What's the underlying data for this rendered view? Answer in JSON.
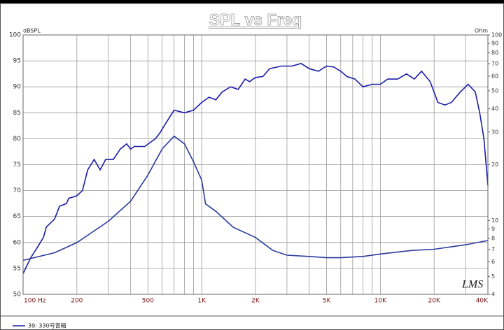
{
  "chart_data": {
    "type": "line",
    "title": "SPL vs Freq",
    "ylabel": "dBSPL",
    "y2label": "Ohm",
    "watermark": "LMS",
    "xscale": "log",
    "y2scale": "log",
    "grid": true,
    "xlim": [
      100,
      40000
    ],
    "xticks": [
      {
        "value": 100,
        "label": "100  Hz"
      },
      200,
      500,
      {
        "value": 1000,
        "label": "1K"
      },
      {
        "value": 2000,
        "label": "2K"
      },
      {
        "value": 5000,
        "label": "5K"
      },
      {
        "value": 10000,
        "label": "10K"
      },
      {
        "value": 20000,
        "label": "20K"
      },
      {
        "value": 40000,
        "label": "40K"
      }
    ],
    "xgrid": [
      300,
      400,
      600,
      700,
      800,
      900,
      3000,
      4000,
      6000,
      7000,
      8000,
      9000,
      30000
    ],
    "ylim": [
      50,
      100
    ],
    "yticks": [
      50,
      55,
      60,
      65,
      70,
      75,
      80,
      85,
      90,
      95,
      100
    ],
    "y2lim": [
      4,
      100
    ],
    "y2ticks": [
      4,
      5,
      6,
      7,
      8,
      9,
      10,
      20,
      30,
      40,
      50,
      60,
      70,
      80,
      90,
      100
    ],
    "series": [
      {
        "name": "39: 330号音箱",
        "color": "#1c1caa",
        "x": [
          100,
          110,
          120,
          130,
          135,
          150,
          160,
          175,
          180,
          200,
          215,
          230,
          250,
          270,
          290,
          320,
          350,
          380,
          400,
          420,
          480,
          550,
          580,
          630,
          700,
          800,
          900,
          1000,
          1100,
          1200,
          1300,
          1450,
          1600,
          1750,
          1850,
          2000,
          2200,
          2400,
          2800,
          3200,
          3600,
          4000,
          4500,
          5000,
          5500,
          6000,
          6500,
          7200,
          8000,
          9000,
          10000,
          11000,
          12500,
          14000,
          15500,
          17000,
          19000,
          21000,
          23000,
          25000,
          28000,
          31000,
          34000,
          36000,
          38000,
          40000
        ],
        "values": [
          54,
          57,
          59,
          61,
          63,
          64.5,
          67,
          67.5,
          68.5,
          69,
          70,
          74,
          76,
          74,
          76,
          76,
          78,
          79,
          78,
          78.5,
          78.5,
          80,
          81,
          83,
          85.5,
          85,
          85.5,
          87,
          88,
          87.5,
          89,
          90,
          89.5,
          91.5,
          91,
          91.8,
          92,
          93.5,
          94,
          94,
          94.5,
          93.5,
          93,
          94,
          93.8,
          93,
          92,
          91.5,
          90,
          90.5,
          90.5,
          91.5,
          91.5,
          92.5,
          91.5,
          93,
          91,
          87,
          86.5,
          87,
          89,
          90.5,
          89,
          85,
          80,
          71
        ]
      },
      {
        "color": "#2a3a9c",
        "axis": "y2",
        "x": [
          100,
          150,
          200,
          300,
          400,
          500,
          600,
          700,
          800,
          900,
          1000,
          1050,
          1200,
          1500,
          2000,
          2500,
          3000,
          4000,
          5000,
          6000,
          8000,
          10000,
          15000,
          20000,
          30000,
          40000
        ],
        "values": [
          6.1,
          6.7,
          7.6,
          9.9,
          12.7,
          17.6,
          24.3,
          28.5,
          25.9,
          20.7,
          16.5,
          12.3,
          11.2,
          9.2,
          8.1,
          6.9,
          6.5,
          6.4,
          6.3,
          6.3,
          6.4,
          6.6,
          6.9,
          7.0,
          7.4,
          7.8
        ]
      }
    ]
  }
}
